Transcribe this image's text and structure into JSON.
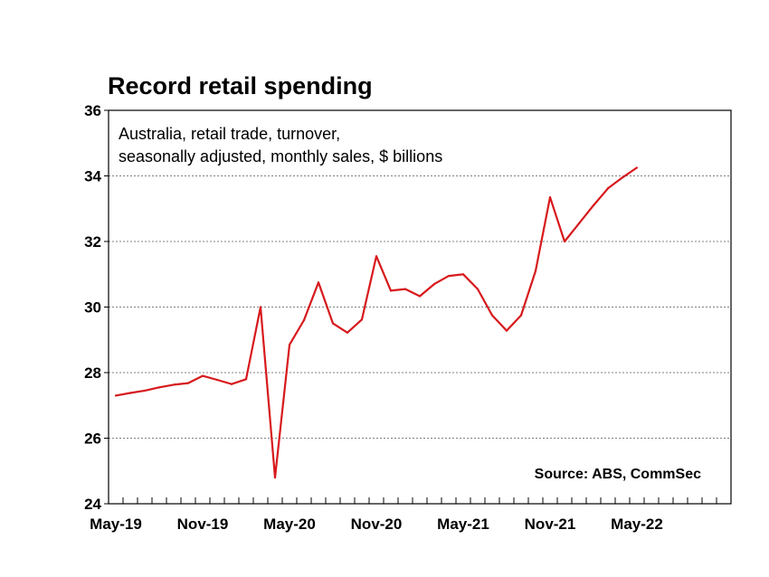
{
  "chart_data": {
    "type": "line",
    "title": "Record retail spending",
    "subtitle_lines": [
      "Australia, retail trade, turnover,",
      "seasonally adjusted, monthly sales, $ billions"
    ],
    "source": "Source: ABS, CommSec",
    "x_tick_labels": [
      "May-19",
      "Nov-19",
      "May-20",
      "Nov-20",
      "May-21",
      "Nov-21",
      "May-22"
    ],
    "y_tick_labels": [
      "24",
      "26",
      "28",
      "30",
      "32",
      "34",
      "36"
    ],
    "ylim": [
      24,
      36
    ],
    "grid": "horizontal dotted",
    "colors": {
      "line": "#d7191c",
      "grid": "#808080",
      "axis": "#000000"
    },
    "series": [
      {
        "x": [
          "May-19",
          "Jun-19",
          "Jul-19",
          "Aug-19",
          "Sep-19",
          "Oct-19",
          "Nov-19",
          "Dec-19",
          "Jan-20",
          "Feb-20",
          "Mar-20",
          "Apr-20",
          "May-20",
          "Jun-20",
          "Jul-20",
          "Aug-20",
          "Sep-20",
          "Oct-20",
          "Nov-20",
          "Dec-20",
          "Jan-21",
          "Feb-21",
          "Mar-21",
          "Apr-21",
          "May-21",
          "Jun-21",
          "Jul-21",
          "Aug-21",
          "Sep-21",
          "Oct-21",
          "Nov-21",
          "Dec-21",
          "Jan-22",
          "Feb-22",
          "Mar-22",
          "Apr-22",
          "May-22"
        ],
        "values": [
          27.3,
          27.38,
          27.45,
          27.55,
          27.63,
          27.68,
          27.9,
          27.78,
          27.65,
          27.8,
          30.0,
          24.8,
          28.85,
          29.6,
          30.75,
          29.5,
          29.22,
          29.62,
          31.55,
          30.5,
          30.55,
          30.33,
          30.7,
          30.95,
          31.0,
          30.55,
          29.75,
          29.28,
          29.75,
          31.1,
          33.35,
          32.0,
          32.55,
          33.1,
          33.62,
          33.95,
          34.25
        ]
      }
    ]
  }
}
